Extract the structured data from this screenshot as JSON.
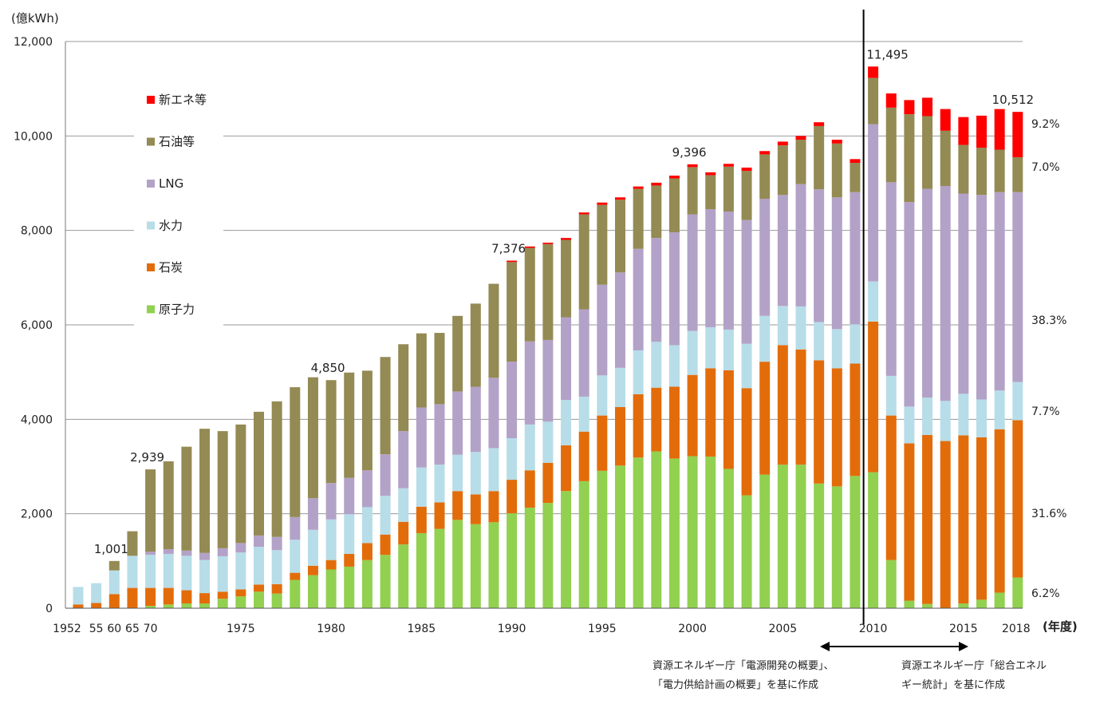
{
  "chart_data": {
    "type": "bar",
    "stacked": true,
    "unit_label": "(億kWh)",
    "x_unit_label": "(年度)",
    "ylim": [
      0,
      12000
    ],
    "y_ticks": [
      {
        "value": 0,
        "label": "0"
      },
      {
        "value": 2000,
        "label": "2,000"
      },
      {
        "value": 4000,
        "label": "4,000"
      },
      {
        "value": 6000,
        "label": "6,000"
      },
      {
        "value": 8000,
        "label": "8,000"
      },
      {
        "value": 10000,
        "label": "10,000"
      },
      {
        "value": 12000,
        "label": "12,000"
      }
    ],
    "grid": true,
    "legend_position": "top-left",
    "categories": [
      "1952",
      "1955",
      "1960",
      "1965",
      "1970",
      "1971",
      "1972",
      "1973",
      "1974",
      "1975",
      "1976",
      "1977",
      "1978",
      "1979",
      "1980",
      "1981",
      "1982",
      "1983",
      "1984",
      "1985",
      "1986",
      "1987",
      "1988",
      "1989",
      "1990",
      "1991",
      "1992",
      "1993",
      "1994",
      "1995",
      "1996",
      "1997",
      "1998",
      "1999",
      "2000",
      "2001",
      "2002",
      "2003",
      "2004",
      "2005",
      "2006",
      "2007",
      "2008",
      "2009",
      "2010",
      "2011",
      "2012",
      "2013",
      "2014",
      "2015",
      "2016",
      "2017",
      "2018"
    ],
    "x_tick_labels": [
      {
        "category": "1952",
        "label": "1952"
      },
      {
        "category": "1955",
        "label": "55"
      },
      {
        "category": "1960",
        "label": "60"
      },
      {
        "category": "1965",
        "label": "65"
      },
      {
        "category": "1970",
        "label": "70"
      },
      {
        "category": "1975",
        "label": "1975"
      },
      {
        "category": "1980",
        "label": "1980"
      },
      {
        "category": "1985",
        "label": "1985"
      },
      {
        "category": "1990",
        "label": "1990"
      },
      {
        "category": "1995",
        "label": "1995"
      },
      {
        "category": "2000",
        "label": "2000"
      },
      {
        "category": "2005",
        "label": "2005"
      },
      {
        "category": "2010",
        "label": "2010"
      },
      {
        "category": "2015",
        "label": "2015"
      },
      {
        "category": "2018",
        "label": "2018"
      }
    ],
    "series": [
      {
        "name": "原子力",
        "color": "#92d050",
        "values": [
          0,
          0,
          0,
          0,
          50,
          80,
          100,
          100,
          200,
          250,
          350,
          310,
          600,
          700,
          820,
          880,
          1020,
          1130,
          1350,
          1590,
          1680,
          1870,
          1780,
          1820,
          2010,
          2130,
          2230,
          2480,
          2690,
          2910,
          3020,
          3190,
          3320,
          3170,
          3220,
          3210,
          2950,
          2390,
          2830,
          3040,
          3040,
          2640,
          2580,
          2800,
          2880,
          1020,
          160,
          90,
          0,
          100,
          180,
          330,
          650
        ]
      },
      {
        "name": "石炭",
        "color": "#e36c0a",
        "values": [
          80,
          110,
          300,
          430,
          380,
          350,
          280,
          220,
          150,
          150,
          150,
          200,
          150,
          200,
          200,
          270,
          360,
          430,
          480,
          560,
          560,
          610,
          630,
          660,
          710,
          790,
          850,
          970,
          1050,
          1170,
          1240,
          1340,
          1350,
          1520,
          1720,
          1870,
          2090,
          2270,
          2390,
          2530,
          2440,
          2610,
          2500,
          2380,
          3190,
          3060,
          3330,
          3580,
          3540,
          3560,
          3440,
          3460,
          3330
        ]
      },
      {
        "name": "水力",
        "color": "#b7dde8",
        "values": [
          370,
          420,
          500,
          680,
          700,
          720,
          730,
          700,
          750,
          780,
          800,
          720,
          700,
          760,
          860,
          840,
          760,
          820,
          710,
          830,
          800,
          770,
          900,
          910,
          880,
          970,
          870,
          960,
          740,
          850,
          830,
          930,
          970,
          880,
          930,
          870,
          860,
          940,
          970,
          830,
          910,
          810,
          830,
          830,
          850,
          840,
          780,
          790,
          850,
          880,
          800,
          820,
          810
        ]
      },
      {
        "name": "LNG",
        "color": "#b3a2c7",
        "values": [
          0,
          0,
          0,
          0,
          70,
          100,
          110,
          150,
          170,
          200,
          240,
          280,
          480,
          670,
          770,
          770,
          780,
          880,
          1210,
          1270,
          1280,
          1340,
          1380,
          1490,
          1620,
          1760,
          1730,
          1750,
          1850,
          1920,
          2020,
          2150,
          2200,
          2390,
          2470,
          2500,
          2500,
          2620,
          2480,
          2350,
          2590,
          2810,
          2790,
          2800,
          3330,
          4100,
          4330,
          4420,
          4550,
          4240,
          4330,
          4200,
          4020
        ]
      },
      {
        "name": "石油等",
        "color": "#948a54",
        "values": [
          0,
          0,
          200,
          520,
          1740,
          1860,
          2200,
          2630,
          2480,
          2510,
          2620,
          2870,
          2750,
          2560,
          2180,
          2230,
          2110,
          2060,
          1840,
          1570,
          1510,
          1600,
          1760,
          1990,
          2110,
          1980,
          2030,
          1640,
          2010,
          1690,
          1540,
          1270,
          1110,
          1140,
          1000,
          720,
          950,
          1040,
          940,
          1050,
          940,
          1340,
          1140,
          620,
          980,
          1580,
          1860,
          1540,
          1170,
          1030,
          1000,
          900,
          740
        ]
      },
      {
        "name": "新エネ等",
        "color": "#ff0000",
        "values": [
          0,
          0,
          0,
          0,
          0,
          0,
          0,
          0,
          0,
          0,
          0,
          0,
          0,
          0,
          0,
          0,
          0,
          0,
          0,
          0,
          0,
          0,
          0,
          0,
          30,
          30,
          30,
          40,
          40,
          50,
          50,
          50,
          60,
          60,
          60,
          60,
          60,
          70,
          70,
          80,
          80,
          80,
          80,
          80,
          240,
          300,
          300,
          390,
          460,
          590,
          680,
          860,
          960
        ]
      }
    ],
    "annotations": {
      "bar_totals": [
        {
          "category": "1960",
          "label": "1,001"
        },
        {
          "category": "1970",
          "label": "2,939"
        },
        {
          "category": "1980",
          "label": "4,850"
        },
        {
          "category": "1990",
          "label": "7,376"
        },
        {
          "category": "2000",
          "label": "9,396"
        },
        {
          "category": "2010",
          "label": "11,495"
        },
        {
          "category": "2018",
          "label": "10,512"
        }
      ],
      "shares_2018": [
        {
          "series": "新エネ等",
          "label": "9.2%"
        },
        {
          "series": "石油等",
          "label": "7.0%"
        },
        {
          "series": "LNG",
          "label": "38.3%"
        },
        {
          "series": "水力",
          "label": "7.7%"
        },
        {
          "series": "石炭",
          "label": "31.6%"
        },
        {
          "series": "原子力",
          "label": "6.2%"
        }
      ],
      "divider_category": "2010",
      "source_left": [
        "資源エネルギー庁「電源開発の概要」、",
        "「電力供給計画の概要」を基に作成"
      ],
      "source_right": [
        "資源エネルギー庁「総合エネル",
        "ギー統計」を基に作成"
      ]
    }
  }
}
